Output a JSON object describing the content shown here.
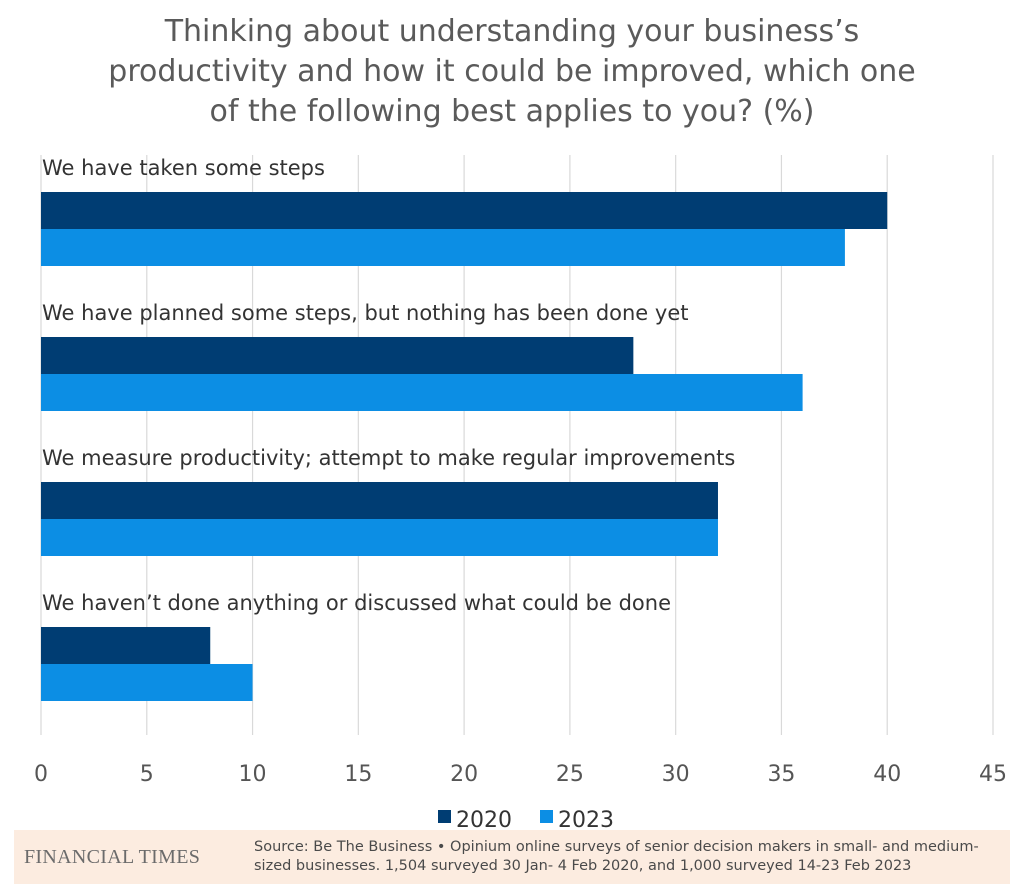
{
  "chart_data": {
    "type": "bar",
    "orientation": "horizontal",
    "title_lines": [
      "Thinking about understanding your business’s",
      "productivity and how it could be improved, which one",
      "of the following best applies to you? (%)"
    ],
    "categories": [
      "We have taken some steps",
      "We have planned some steps, but nothing has been done yet",
      "We measure productivity; attempt to make regular improvements",
      "We haven’t done anything or discussed what could be done"
    ],
    "series": [
      {
        "name": "2020",
        "color": "#003d73",
        "values": [
          40,
          28,
          32,
          8
        ]
      },
      {
        "name": "2023",
        "color": "#0c8ee4",
        "values": [
          38,
          36,
          32,
          10
        ]
      }
    ],
    "xlim": [
      0,
      45
    ],
    "xticks": [
      "0",
      "5",
      "10",
      "15",
      "20",
      "25",
      "30",
      "35",
      "40",
      "45"
    ],
    "grid": true,
    "legend_position": "bottom-center"
  },
  "footer": {
    "logo": "FINANCIAL TIMES",
    "source_line1": "Source: Be The Business • Opinium online surveys of senior decision makers in small- and medium-",
    "source_line2": "sized businesses. 1,504 surveyed 30 Jan- 4 Feb 2020, and 1,000 surveyed 14-23 Feb 2023"
  }
}
